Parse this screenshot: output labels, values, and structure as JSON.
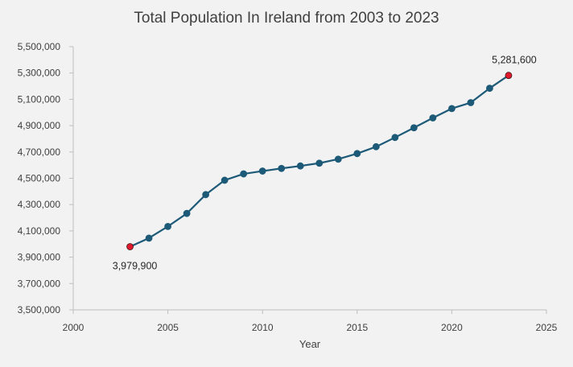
{
  "chart_data": {
    "type": "line",
    "title": "Total Population In Ireland from 2003 to 2023",
    "xlabel": "Year",
    "ylabel": "",
    "xlim": [
      2000,
      2025
    ],
    "ylim": [
      3500000,
      5500000
    ],
    "x_ticks": [
      "2000",
      "2005",
      "2010",
      "2015",
      "2020",
      "2025"
    ],
    "y_ticks": [
      "3,500,000",
      "3,700,000",
      "3,900,000",
      "4,100,000",
      "4,300,000",
      "4,500,000",
      "4,700,000",
      "4,900,000",
      "5,100,000",
      "5,300,000",
      "5,500,000"
    ],
    "grid": false,
    "series": [
      {
        "x": [
          2003,
          2004,
          2005,
          2006,
          2007,
          2008,
          2009,
          2010,
          2011,
          2012,
          2013,
          2014,
          2015,
          2016,
          2017,
          2018,
          2019,
          2020,
          2021,
          2022,
          2023
        ],
        "values": [
          3979900,
          4045200,
          4133800,
          4232900,
          4375800,
          4485100,
          4533400,
          4554800,
          4574900,
          4593700,
          4614700,
          4645400,
          4687800,
          4739600,
          4810000,
          4884000,
          4958500,
          5029900,
          5074700,
          5184000,
          5281600
        ],
        "color": "#1d5a78",
        "highlight_color": "#e0182b",
        "highlight_indices": [
          0,
          20
        ]
      }
    ],
    "annotations": [
      {
        "text": "3,979,900",
        "point_index": 0
      },
      {
        "text": "5,281,600",
        "point_index": 20
      }
    ]
  }
}
